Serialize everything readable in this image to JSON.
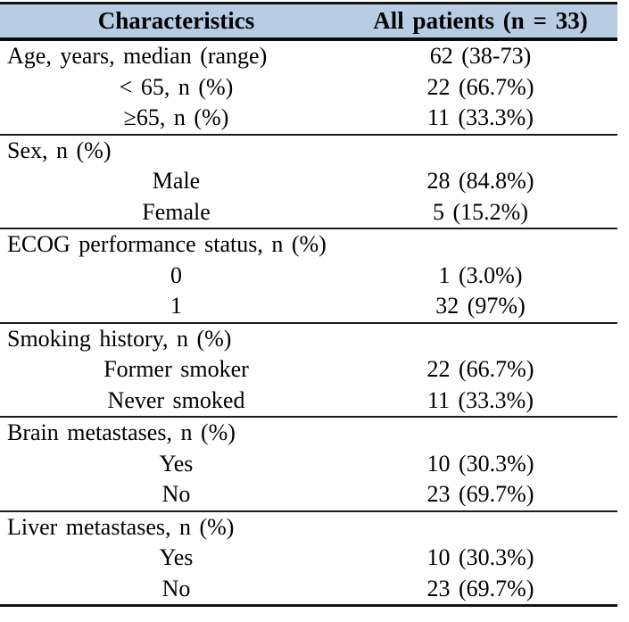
{
  "colors": {
    "header_bg": "#b8cce4",
    "border": "#131313",
    "text": "#000000",
    "page_bg": "#ffffff"
  },
  "header": {
    "characteristics": "Characteristics",
    "all_patients": "All patients (n = 33)"
  },
  "sections": [
    {
      "rows": [
        {
          "label": "Age, years, median (range)",
          "value": "62 (38-73)",
          "indent": false
        },
        {
          "label": "< 65, n (%)",
          "value": "22 (66.7%)",
          "indent": true
        },
        {
          "label": "≥65, n (%)",
          "value": "11 (33.3%)",
          "indent": true
        }
      ]
    },
    {
      "rows": [
        {
          "label": "Sex, n (%)",
          "value": "",
          "indent": false
        },
        {
          "label": "Male",
          "value": "28 (84.8%)",
          "indent": true
        },
        {
          "label": "Female",
          "value": "5 (15.2%)",
          "indent": true
        }
      ]
    },
    {
      "rows": [
        {
          "label": "ECOG performance status, n (%)",
          "value": "",
          "indent": false
        },
        {
          "label": "0",
          "value": "1 (3.0%)",
          "indent": true
        },
        {
          "label": "1",
          "value": "32 (97%)",
          "indent": true
        }
      ]
    },
    {
      "rows": [
        {
          "label": "Smoking history, n (%)",
          "value": "",
          "indent": false
        },
        {
          "label": "Former smoker",
          "value": "22 (66.7%)",
          "indent": true
        },
        {
          "label": "Never smoked",
          "value": "11 (33.3%)",
          "indent": true
        }
      ]
    },
    {
      "rows": [
        {
          "label": "Brain metastases, n (%)",
          "value": "",
          "indent": false
        },
        {
          "label": "Yes",
          "value": "10 (30.3%)",
          "indent": true
        },
        {
          "label": "No",
          "value": "23 (69.7%)",
          "indent": true
        }
      ]
    },
    {
      "rows": [
        {
          "label": "Liver metastases, n (%)",
          "value": "",
          "indent": false
        },
        {
          "label": "Yes",
          "value": "10 (30.3%)",
          "indent": true
        },
        {
          "label": "No",
          "value": "23 (69.7%)",
          "indent": true
        }
      ]
    }
  ]
}
